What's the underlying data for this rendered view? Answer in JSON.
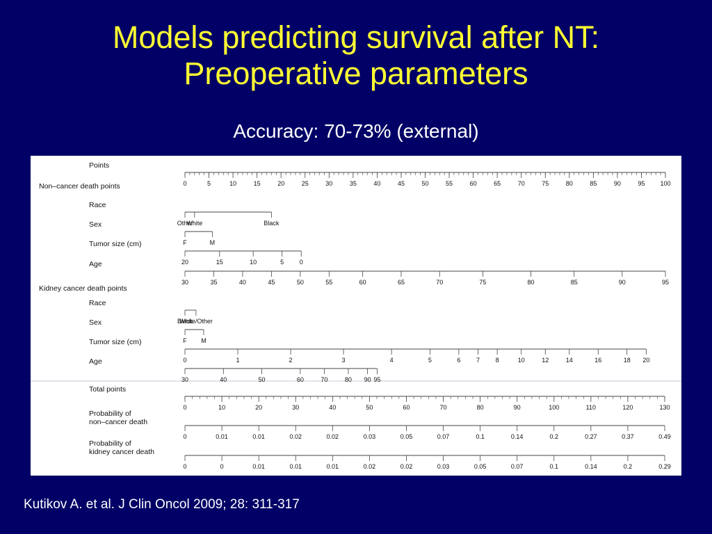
{
  "slide": {
    "title_line1": "Models predicting survival after NT:",
    "title_line2": "Preoperative parameters",
    "subtitle": "Accuracy: 70-73% (external)",
    "citation": "Kutikov A. et al. J Clin Oncol 2009; 28: 311-317"
  },
  "colors": {
    "background": "#000066",
    "title": "#ffff33",
    "text": "#ffffff",
    "panel": "#ffffff"
  },
  "chart_data": {
    "type": "nomogram",
    "sections": [
      "Non–cancer death points",
      "Kidney cancer death points"
    ],
    "scales": [
      {
        "label": "Points",
        "section": null,
        "min": 0,
        "max": 100,
        "minor_step": 1,
        "tick_labels": [
          "0",
          "5",
          "10",
          "15",
          "20",
          "25",
          "30",
          "35",
          "40",
          "45",
          "50",
          "55",
          "60",
          "65",
          "70",
          "75",
          "80",
          "85",
          "90",
          "95",
          "100"
        ],
        "tick_points": [
          0,
          5,
          10,
          15,
          20,
          25,
          30,
          35,
          40,
          45,
          50,
          55,
          60,
          65,
          70,
          75,
          80,
          85,
          90,
          95,
          100
        ]
      },
      {
        "label": "Race",
        "section": 0,
        "tick_labels": [
          "Other",
          "White",
          "Black"
        ],
        "tick_points": [
          0,
          2,
          18
        ]
      },
      {
        "label": "Sex",
        "section": 0,
        "tick_labels": [
          "F",
          "M"
        ],
        "tick_points": [
          0,
          5.7
        ]
      },
      {
        "label": "Tumor size (cm)",
        "section": 0,
        "tick_labels": [
          "20",
          "15",
          "10",
          "5",
          "0"
        ],
        "tick_points": [
          0,
          7.2,
          14.2,
          20.2,
          24.2
        ]
      },
      {
        "label": "Age",
        "section": 0,
        "tick_labels": [
          "30",
          "35",
          "40",
          "45",
          "50",
          "55",
          "60",
          "65",
          "70",
          "75",
          "80",
          "85",
          "90",
          "95"
        ],
        "tick_points": [
          0,
          6,
          12,
          18,
          24,
          30,
          37,
          45,
          53,
          62,
          72,
          81,
          91,
          100
        ]
      },
      {
        "label": "Race",
        "section": 1,
        "tick_labels": [
          "Black",
          "White/Other"
        ],
        "tick_points": [
          0,
          2.3
        ]
      },
      {
        "label": "Sex",
        "section": 1,
        "tick_labels": [
          "F",
          "M"
        ],
        "tick_points": [
          0,
          3.9
        ]
      },
      {
        "label": "Tumor size (cm)",
        "section": 1,
        "tick_labels": [
          "0",
          "1",
          "2",
          "3",
          "4",
          "5",
          "6",
          "7",
          "8",
          "10",
          "12",
          "14",
          "16",
          "18",
          "20"
        ],
        "tick_points": [
          0,
          11,
          22,
          33,
          43,
          51,
          57,
          61,
          65,
          70,
          75,
          80,
          86,
          92,
          96
        ]
      },
      {
        "label": "Age",
        "section": 1,
        "tick_labels": [
          "30",
          "40",
          "50",
          "60",
          "70",
          "80",
          "90",
          "95"
        ],
        "tick_points": [
          0,
          8,
          16,
          24,
          29,
          34,
          38,
          40
        ]
      },
      {
        "label": "Total points",
        "section": null,
        "min": 0,
        "max": 130,
        "minor_step": 2,
        "tick_labels": [
          "0",
          "10",
          "20",
          "30",
          "40",
          "50",
          "60",
          "70",
          "80",
          "90",
          "100",
          "110",
          "120",
          "130"
        ],
        "tick_points": [
          0,
          10,
          20,
          30,
          40,
          50,
          60,
          70,
          80,
          90,
          100,
          110,
          120,
          130
        ]
      },
      {
        "label": "Probability of\nnon–cancer death",
        "section": null,
        "tick_labels": [
          "0",
          "0.01",
          "0.01",
          "0.02",
          "0.02",
          "0.03",
          "0.05",
          "0.07",
          "0.1",
          "0.14",
          "0.2",
          "0.27",
          "0.37",
          "0.49"
        ],
        "tick_points": [
          0,
          10,
          20,
          30,
          40,
          50,
          60,
          70,
          80,
          90,
          100,
          110,
          120,
          130
        ]
      },
      {
        "label": "Probability of\nkidney cancer death",
        "section": null,
        "tick_labels": [
          "0",
          "0",
          "0.01",
          "0.01",
          "0.01",
          "0.02",
          "0.02",
          "0.03",
          "0.05",
          "0.07",
          "0.1",
          "0.14",
          "0.2",
          "0.29"
        ],
        "tick_points": [
          0,
          10,
          20,
          30,
          40,
          50,
          60,
          70,
          80,
          90,
          100,
          110,
          120,
          130
        ]
      }
    ]
  }
}
